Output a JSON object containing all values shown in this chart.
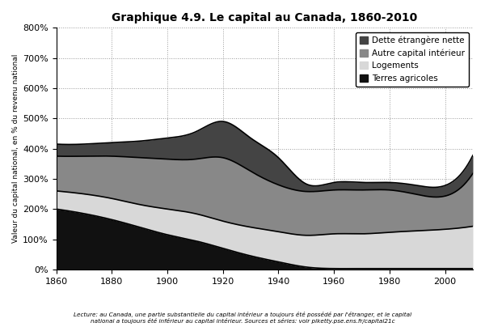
{
  "title": "Graphique 4.9. Le capital au Canada, 1860-2010",
  "ylabel": "Valeur du capital national, en % du revenu national",
  "footnote": "Lecture: au Canada, une partie substantielle du capital intérieur a toujours été possédé par l'étranger, et le capital\nnational a toujours été inférieur au capital intérieur. Sources et séries: voir piketty.pse.ens.fr/capital21c",
  "years": [
    1860,
    1870,
    1880,
    1890,
    1900,
    1910,
    1920,
    1930,
    1940,
    1950,
    1960,
    1970,
    1980,
    1990,
    2000,
    2010
  ],
  "terres_agricoles": [
    200,
    185,
    165,
    140,
    115,
    95,
    70,
    45,
    25,
    8,
    3,
    3,
    3,
    3,
    3,
    3
  ],
  "logements": [
    60,
    65,
    70,
    75,
    85,
    90,
    90,
    95,
    100,
    105,
    115,
    115,
    120,
    125,
    130,
    140
  ],
  "autre_capital_interieur": [
    115,
    125,
    140,
    155,
    165,
    180,
    210,
    185,
    155,
    145,
    145,
    145,
    140,
    120,
    110,
    175
  ],
  "dette_etrangere_nette": [
    40,
    40,
    45,
    55,
    70,
    90,
    120,
    110,
    90,
    25,
    25,
    25,
    25,
    30,
    35,
    60
  ],
  "colors": {
    "terres_agricoles": "#111111",
    "logements": "#d8d8d8",
    "autre_capital_interieur": "#888888",
    "dette_etrangere_nette": "#444444"
  },
  "ylim": [
    0,
    800
  ],
  "yticks": [
    0,
    100,
    200,
    300,
    400,
    500,
    600,
    700,
    800
  ],
  "ytick_labels": [
    "0%",
    "100%",
    "200%",
    "300%",
    "400%",
    "500%",
    "600%",
    "700%",
    "800%"
  ],
  "xticks": [
    1860,
    1880,
    1900,
    1920,
    1940,
    1960,
    1980,
    2000
  ],
  "legend_labels": [
    "Dette étrangère nette",
    "Autre capital intérieur",
    "Logements",
    "Terres agricoles"
  ],
  "background_color": "#ffffff",
  "grid_color": "#999999"
}
